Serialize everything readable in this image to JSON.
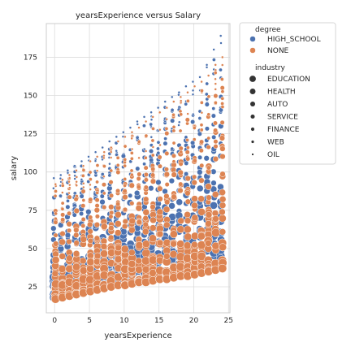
{
  "chart_data": {
    "type": "scatter",
    "title": "yearsExperience versus Salary",
    "xlabel": "yearsExperience",
    "ylabel": "salary",
    "xlim": [
      -1.2,
      25.2
    ],
    "ylim": [
      8,
      197
    ],
    "xticks": [
      0,
      5,
      10,
      15,
      20,
      25
    ],
    "yticks": [
      25,
      50,
      75,
      100,
      125,
      150,
      175
    ],
    "grid": true,
    "legend_position": "outside-right",
    "legend": {
      "hue_title": "degree",
      "hue": [
        {
          "name": "HIGH_SCHOOL",
          "color": "#4c72b0"
        },
        {
          "name": "NONE",
          "color": "#dd8452"
        }
      ],
      "size_title": "industry",
      "sizes": [
        {
          "name": "EDUCATION",
          "size_rank": 7
        },
        {
          "name": "HEALTH",
          "size_rank": 6
        },
        {
          "name": "AUTO",
          "size_rank": 5
        },
        {
          "name": "SERVICE",
          "size_rank": 4
        },
        {
          "name": "FINANCE",
          "size_rank": 3
        },
        {
          "name": "WEB",
          "size_rank": 2
        },
        {
          "name": "OIL",
          "size_rank": 1
        }
      ]
    },
    "series": [
      {
        "name": "HIGH_SCHOOL",
        "color": "#4c72b0",
        "x": [
          0,
          1,
          2,
          3,
          4,
          5,
          6,
          7,
          8,
          9,
          10,
          11,
          12,
          13,
          14,
          15,
          16,
          17,
          18,
          19,
          20,
          21,
          22,
          23,
          24
        ],
        "y_min": [
          18,
          19,
          20,
          21,
          22,
          23,
          24,
          25,
          26,
          27,
          27,
          28,
          29,
          29,
          30,
          31,
          31,
          32,
          33,
          33,
          34,
          35,
          36,
          37,
          38
        ],
        "y_max": [
          96,
          98,
          101,
          104,
          107,
          110,
          113,
          116,
          120,
          123,
          126,
          129,
          133,
          136,
          139,
          142,
          146,
          149,
          152,
          156,
          159,
          162,
          170,
          180,
          189
        ]
      },
      {
        "name": "NONE",
        "color": "#dd8452",
        "x": [
          0,
          1,
          2,
          3,
          4,
          5,
          6,
          7,
          8,
          9,
          10,
          11,
          12,
          13,
          14,
          15,
          16,
          17,
          18,
          19,
          20,
          21,
          22,
          23,
          24
        ],
        "y_min": [
          17,
          18,
          19,
          20,
          21,
          22,
          23,
          24,
          25,
          26,
          26,
          27,
          28,
          28,
          29,
          30,
          30,
          31,
          32,
          32,
          33,
          34,
          35,
          36,
          37
        ],
        "y_max": [
          92,
          95,
          98,
          101,
          104,
          107,
          110,
          113,
          116,
          120,
          123,
          126,
          129,
          133,
          136,
          139,
          142,
          146,
          149,
          152,
          156,
          159,
          163,
          170,
          175
        ]
      }
    ]
  }
}
